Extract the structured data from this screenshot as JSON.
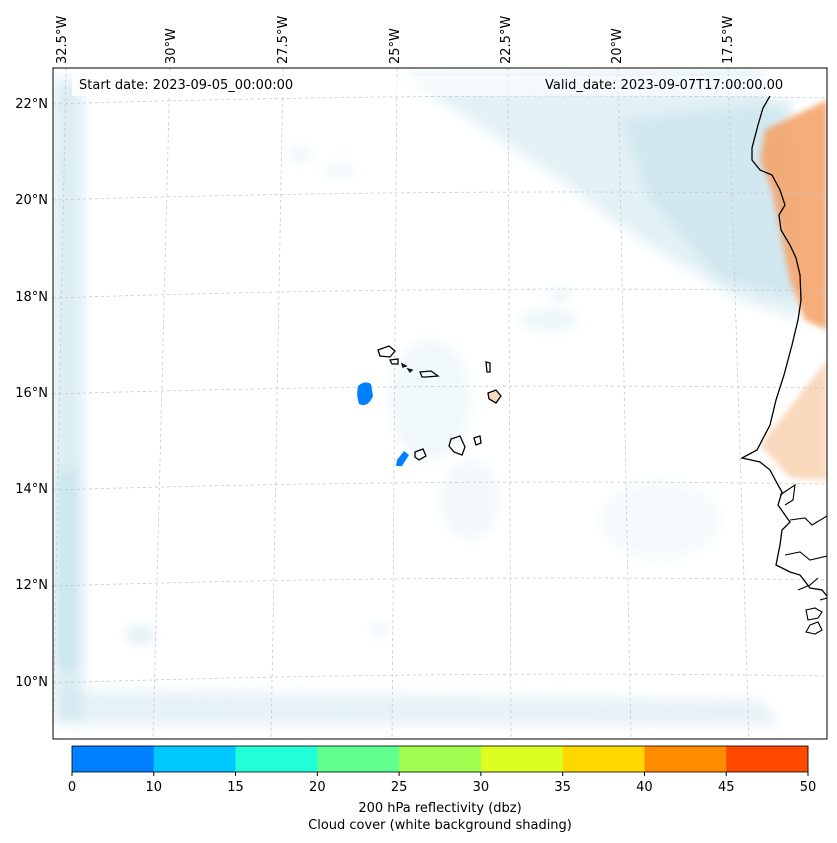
{
  "map": {
    "start_date": "Start date: 2023-09-05_00:00:00",
    "valid_date": "Valid_date: 2023-09-07T17:00:00.00",
    "longitude_labels": [
      "32.5°W",
      "30°W",
      "27.5°W",
      "25°W",
      "22.5°W",
      "20°W",
      "17.5°W"
    ],
    "latitude_labels": [
      "22°N",
      "20°N",
      "18°N",
      "16°N",
      "14°N",
      "12°N",
      "10°N"
    ],
    "features": [
      "cape-verde-islands",
      "west-africa-coastline",
      "mauritania-senegal-coast"
    ]
  },
  "colorbar": {
    "ticks": [
      "0",
      "10",
      "15",
      "20",
      "25",
      "30",
      "35",
      "40",
      "45",
      "50"
    ],
    "colors": [
      "#0080ff",
      "#00c8ff",
      "#20ffd6",
      "#60ff90",
      "#a0ff50",
      "#dcff20",
      "#ffd800",
      "#ff8c00",
      "#ff4800"
    ],
    "label_line1": "200 hPa reflectivity (dbz)",
    "label_line2": "Cloud cover (white background shading)"
  },
  "colors": {
    "cloud_cover": "#bfe0ea",
    "reflectivity_low": "#0080ff",
    "land_heat": "#f4a46c",
    "gridline": "#c8c8c8"
  }
}
